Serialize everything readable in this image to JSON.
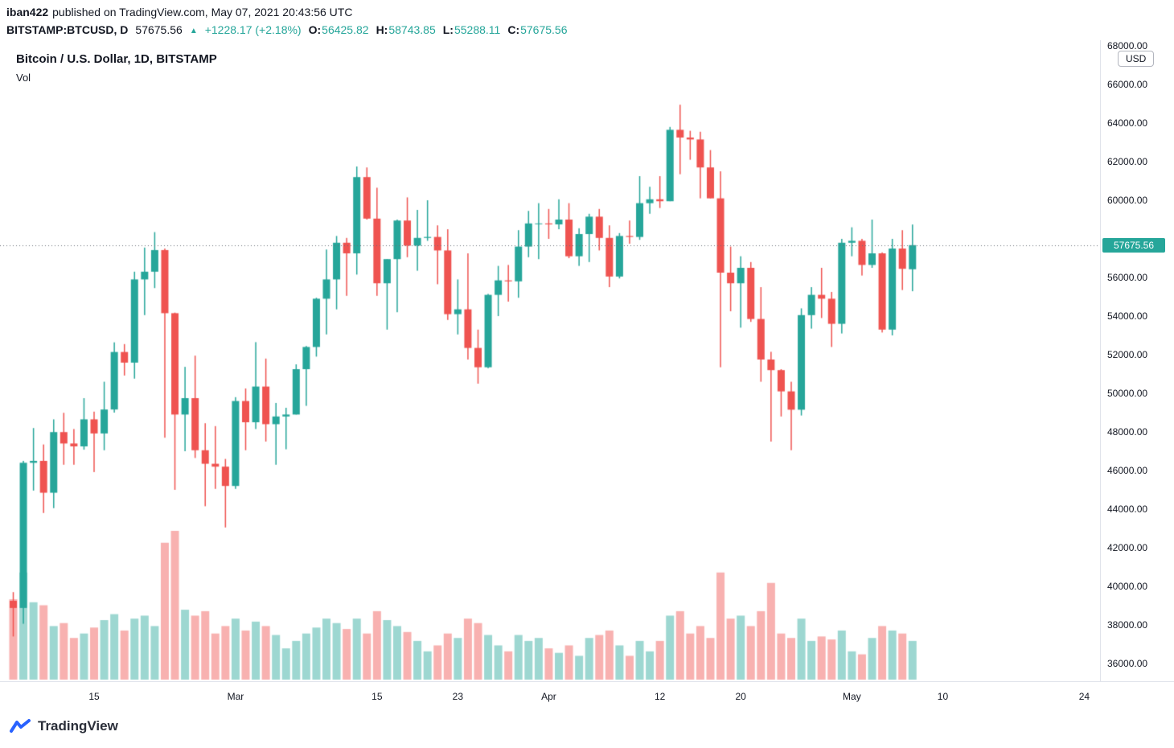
{
  "attribution": {
    "username": "iban422",
    "published_text": "published on TradingView.com, May 07, 2021 20:43:56 UTC"
  },
  "quote_bar": {
    "symbol_interval": "BITSTAMP:BTCUSD, D",
    "last_price": "57675.56",
    "direction_icon": "▲",
    "change": "+1228.17 (+2.18%)",
    "open_label": "O:",
    "open": "56425.82",
    "high_label": "H:",
    "high": "58743.85",
    "low_label": "L:",
    "low": "55288.11",
    "close_label": "C:",
    "close": "57675.56"
  },
  "legend": {
    "title": "Bitcoin / U.S. Dollar, 1D, BITSTAMP",
    "indicator": "Vol"
  },
  "price_axis": {
    "currency_button": "USD",
    "price_badge": "57675.56",
    "labels": [
      "68000.00",
      "66000.00",
      "64000.00",
      "62000.00",
      "60000.00",
      "56000.00",
      "54000.00",
      "52000.00",
      "50000.00",
      "48000.00",
      "46000.00",
      "44000.00",
      "42000.00",
      "40000.00",
      "38000.00",
      "36000.00"
    ]
  },
  "time_axis": {
    "labels": [
      {
        "text": "15",
        "i": 8
      },
      {
        "text": "Mar",
        "i": 22
      },
      {
        "text": "15",
        "i": 36
      },
      {
        "text": "23",
        "i": 44
      },
      {
        "text": "Apr",
        "i": 53
      },
      {
        "text": "12",
        "i": 64
      },
      {
        "text": "20",
        "i": 72
      },
      {
        "text": "May",
        "i": 83
      },
      {
        "text": "10",
        "i": 92
      },
      {
        "text": "24",
        "i": 106
      }
    ]
  },
  "footer": {
    "brand": "TradingView"
  },
  "colors": {
    "up": "#26a69a",
    "down": "#ef5350",
    "volume_up": "rgba(38,166,154,0.45)",
    "volume_down": "rgba(239,83,80,0.45)",
    "badge_bg": "#26a69a",
    "accent_text": "#26a69a",
    "axis_text": "#131722",
    "brand_blue": "#2962ff",
    "dotted_line": "#6a6d78"
  },
  "chart_data": {
    "type": "candlestick",
    "title": "Bitcoin / U.S. Dollar, 1D, BITSTAMP",
    "symbol": "BITSTAMP:BTCUSD",
    "interval": "1D",
    "legend_position": "top-left",
    "grid": false,
    "price_axis": {
      "position": "right",
      "min": 36000,
      "max": 68000,
      "tick_step": 2000
    },
    "last_price": 57675.56,
    "volume_note": "volume_rel is relative 0-100; no volume axis labels are shown on screen",
    "columns": [
      "date",
      "open",
      "high",
      "low",
      "close",
      "volume_rel"
    ],
    "candles": [
      [
        "2021-02-07",
        39250,
        39700,
        37400,
        38880,
        54
      ],
      [
        "2021-02-08",
        38880,
        46500,
        38060,
        46400,
        72
      ],
      [
        "2021-02-09",
        46400,
        48200,
        44960,
        46500,
        52
      ],
      [
        "2021-02-10",
        46500,
        47350,
        43800,
        44850,
        50
      ],
      [
        "2021-02-11",
        44850,
        48650,
        44050,
        47990,
        36
      ],
      [
        "2021-02-12",
        47990,
        48990,
        46300,
        47400,
        38
      ],
      [
        "2021-02-13",
        47400,
        48150,
        46300,
        47250,
        28
      ],
      [
        "2021-02-14",
        47250,
        49750,
        47080,
        48650,
        31
      ],
      [
        "2021-02-15",
        48650,
        49050,
        45920,
        47920,
        35
      ],
      [
        "2021-02-16",
        47920,
        50600,
        47050,
        49160,
        40
      ],
      [
        "2021-02-17",
        49160,
        52640,
        49000,
        52140,
        44
      ],
      [
        "2021-02-18",
        52140,
        52550,
        50920,
        51590,
        33
      ],
      [
        "2021-02-19",
        51590,
        56300,
        50760,
        55900,
        41
      ],
      [
        "2021-02-20",
        55900,
        57550,
        54050,
        56300,
        43
      ],
      [
        "2021-02-21",
        56300,
        58350,
        55450,
        57420,
        36
      ],
      [
        "2021-02-22",
        57420,
        57500,
        47700,
        54150,
        92
      ],
      [
        "2021-02-23",
        54150,
        54180,
        45000,
        48900,
        100
      ],
      [
        "2021-02-24",
        48900,
        51370,
        47000,
        49750,
        47
      ],
      [
        "2021-02-25",
        49750,
        51950,
        46650,
        47050,
        43
      ],
      [
        "2021-02-26",
        47050,
        48450,
        44150,
        46350,
        46
      ],
      [
        "2021-02-27",
        46350,
        48300,
        45050,
        46200,
        31
      ],
      [
        "2021-02-28",
        46200,
        46600,
        43050,
        45200,
        36
      ],
      [
        "2021-03-01",
        45200,
        49800,
        45050,
        49600,
        41
      ],
      [
        "2021-03-02",
        49600,
        50250,
        47050,
        48500,
        33
      ],
      [
        "2021-03-03",
        48500,
        52650,
        48150,
        50350,
        39
      ],
      [
        "2021-03-04",
        50350,
        51800,
        47500,
        48400,
        36
      ],
      [
        "2021-03-05",
        48400,
        49500,
        46300,
        48800,
        30
      ],
      [
        "2021-03-06",
        48800,
        49250,
        47100,
        48900,
        21
      ],
      [
        "2021-03-07",
        48900,
        51500,
        48900,
        51250,
        26
      ],
      [
        "2021-03-08",
        51250,
        52450,
        49350,
        52400,
        31
      ],
      [
        "2021-03-09",
        52400,
        54950,
        51900,
        54900,
        35
      ],
      [
        "2021-03-10",
        54900,
        57450,
        53050,
        55900,
        41
      ],
      [
        "2021-03-11",
        55900,
        58150,
        54350,
        57800,
        38
      ],
      [
        "2021-03-12",
        57800,
        58050,
        55050,
        57250,
        34
      ],
      [
        "2021-03-13",
        57250,
        61750,
        56150,
        61200,
        41
      ],
      [
        "2021-03-14",
        61200,
        61700,
        59000,
        59050,
        31
      ],
      [
        "2021-03-15",
        59050,
        60650,
        55050,
        55700,
        46
      ],
      [
        "2021-03-16",
        55700,
        56950,
        53300,
        56950,
        40
      ],
      [
        "2021-03-17",
        56950,
        59000,
        54200,
        58950,
        36
      ],
      [
        "2021-03-18",
        58950,
        60150,
        57050,
        57650,
        32
      ],
      [
        "2021-03-19",
        57650,
        59500,
        56350,
        58050,
        26
      ],
      [
        "2021-03-20",
        58050,
        60000,
        57900,
        58100,
        19
      ],
      [
        "2021-03-21",
        58100,
        58700,
        55650,
        57400,
        23
      ],
      [
        "2021-03-22",
        57400,
        58500,
        53800,
        54100,
        31
      ],
      [
        "2021-03-23",
        54100,
        55900,
        53050,
        54350,
        28
      ],
      [
        "2021-03-24",
        54350,
        57250,
        51750,
        52350,
        41
      ],
      [
        "2021-03-25",
        52350,
        53300,
        50500,
        51350,
        38
      ],
      [
        "2021-03-26",
        51350,
        55150,
        51300,
        55100,
        30
      ],
      [
        "2021-03-27",
        55100,
        56600,
        54000,
        55850,
        23
      ],
      [
        "2021-03-28",
        55850,
        56650,
        54750,
        55800,
        19
      ],
      [
        "2021-03-29",
        55800,
        58450,
        54950,
        57600,
        30
      ],
      [
        "2021-03-30",
        57600,
        59450,
        57050,
        58800,
        26
      ],
      [
        "2021-03-31",
        58800,
        59850,
        56950,
        58800,
        28
      ],
      [
        "2021-04-01",
        58800,
        59550,
        58000,
        58750,
        21
      ],
      [
        "2021-04-02",
        58750,
        60050,
        58500,
        59000,
        18
      ],
      [
        "2021-04-03",
        59000,
        59850,
        57000,
        57100,
        23
      ],
      [
        "2021-04-04",
        57100,
        58550,
        56600,
        58250,
        16
      ],
      [
        "2021-04-05",
        58250,
        59300,
        56800,
        59150,
        28
      ],
      [
        "2021-04-06",
        59150,
        59550,
        57400,
        58050,
        30
      ],
      [
        "2021-04-07",
        58050,
        58700,
        55500,
        56050,
        33
      ],
      [
        "2021-04-08",
        56050,
        58300,
        55950,
        58150,
        23
      ],
      [
        "2021-04-09",
        58150,
        58950,
        57750,
        58100,
        16
      ],
      [
        "2021-04-10",
        58100,
        61250,
        57950,
        59850,
        26
      ],
      [
        "2021-04-11",
        59850,
        60700,
        59300,
        60050,
        19
      ],
      [
        "2021-04-12",
        60050,
        61250,
        59600,
        59950,
        26
      ],
      [
        "2021-04-13",
        59950,
        63800,
        59950,
        63650,
        43
      ],
      [
        "2021-04-14",
        63650,
        64950,
        61350,
        63250,
        46
      ],
      [
        "2021-04-15",
        63250,
        63600,
        62100,
        63150,
        31
      ],
      [
        "2021-04-16",
        63150,
        63550,
        60100,
        61700,
        36
      ],
      [
        "2021-04-17",
        61700,
        62600,
        60100,
        60100,
        28
      ],
      [
        "2021-04-18",
        60100,
        61500,
        51350,
        56250,
        72
      ],
      [
        "2021-04-19",
        56250,
        57600,
        54250,
        55700,
        41
      ],
      [
        "2021-04-20",
        55700,
        57100,
        53400,
        56500,
        43
      ],
      [
        "2021-04-21",
        56500,
        56800,
        53700,
        53850,
        36
      ],
      [
        "2021-04-22",
        53850,
        55500,
        50600,
        51750,
        46
      ],
      [
        "2021-04-23",
        51750,
        52150,
        47500,
        51200,
        65
      ],
      [
        "2021-04-24",
        51200,
        51250,
        48800,
        50100,
        31
      ],
      [
        "2021-04-25",
        50100,
        50600,
        47050,
        49150,
        28
      ],
      [
        "2021-04-26",
        49150,
        54400,
        48850,
        54050,
        41
      ],
      [
        "2021-04-27",
        54050,
        55500,
        53350,
        55100,
        26
      ],
      [
        "2021-04-28",
        55100,
        56500,
        53900,
        54900,
        29
      ],
      [
        "2021-04-29",
        54900,
        55250,
        52400,
        53600,
        27
      ],
      [
        "2021-04-30",
        53600,
        58000,
        53100,
        57800,
        33
      ],
      [
        "2021-05-01",
        57800,
        58600,
        57100,
        57900,
        19
      ],
      [
        "2021-05-02",
        57900,
        58000,
        56100,
        56650,
        17
      ],
      [
        "2021-05-03",
        56650,
        59000,
        56500,
        57250,
        28
      ],
      [
        "2021-05-04",
        57250,
        57300,
        53150,
        53300,
        36
      ],
      [
        "2021-05-05",
        53300,
        58000,
        53000,
        57500,
        33
      ],
      [
        "2021-05-06",
        57500,
        58450,
        55350,
        56450,
        31
      ],
      [
        "2021-05-07",
        56425.82,
        58743.85,
        55288.11,
        57675.56,
        26
      ]
    ]
  }
}
